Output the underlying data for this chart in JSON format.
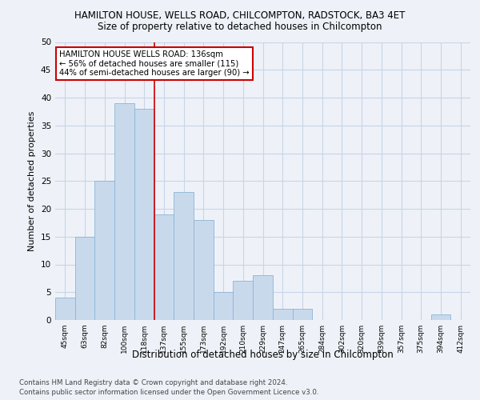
{
  "title1": "HAMILTON HOUSE, WELLS ROAD, CHILCOMPTON, RADSTOCK, BA3 4ET",
  "title2": "Size of property relative to detached houses in Chilcompton",
  "xlabel": "Distribution of detached houses by size in Chilcompton",
  "ylabel": "Number of detached properties",
  "categories": [
    "45sqm",
    "63sqm",
    "82sqm",
    "100sqm",
    "118sqm",
    "137sqm",
    "155sqm",
    "173sqm",
    "192sqm",
    "210sqm",
    "229sqm",
    "247sqm",
    "265sqm",
    "284sqm",
    "302sqm",
    "320sqm",
    "339sqm",
    "357sqm",
    "375sqm",
    "394sqm",
    "412sqm"
  ],
  "values": [
    4,
    15,
    25,
    39,
    38,
    19,
    23,
    18,
    5,
    7,
    8,
    2,
    2,
    0,
    0,
    0,
    0,
    0,
    0,
    1,
    0
  ],
  "bar_color": "#c9d9ec",
  "bar_edge_color": "#8ab4d4",
  "highlight_index": 5,
  "highlight_line_color": "#cc0000",
  "ylim": [
    0,
    50
  ],
  "yticks": [
    0,
    5,
    10,
    15,
    20,
    25,
    30,
    35,
    40,
    45,
    50
  ],
  "annotation_text": "HAMILTON HOUSE WELLS ROAD: 136sqm\n← 56% of detached houses are smaller (115)\n44% of semi-detached houses are larger (90) →",
  "annotation_box_color": "#ffffff",
  "annotation_box_edge": "#cc0000",
  "footer1": "Contains HM Land Registry data © Crown copyright and database right 2024.",
  "footer2": "Contains public sector information licensed under the Open Government Licence v3.0.",
  "background_color": "#eef2f8",
  "grid_color": "#c8d4e8"
}
